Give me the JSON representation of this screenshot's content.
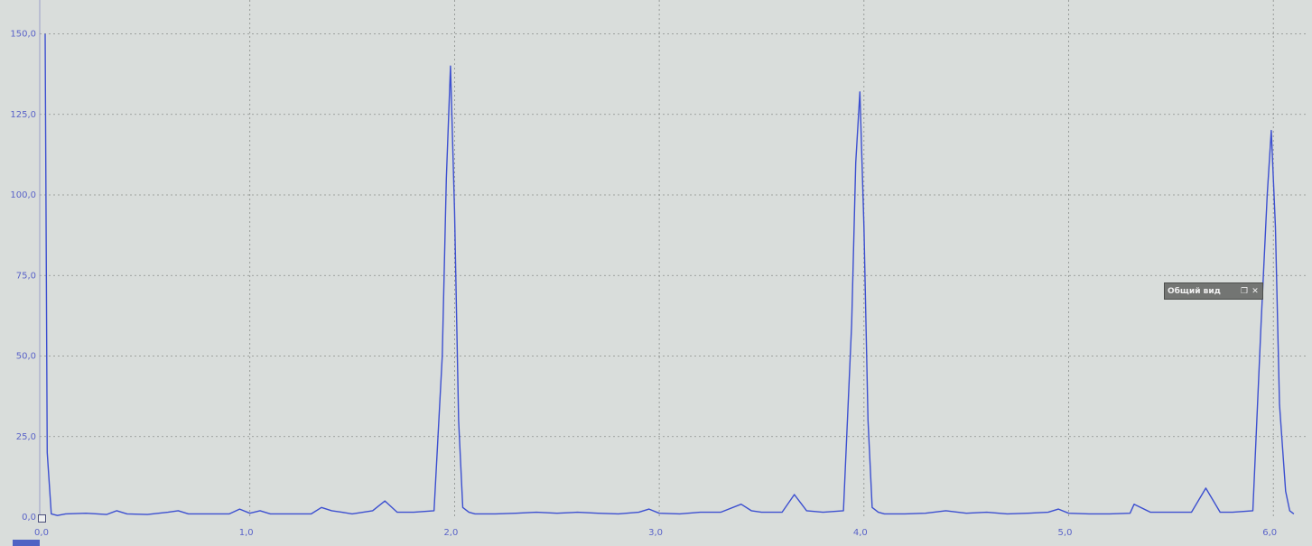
{
  "overview_panel": {
    "title": "Общий вид",
    "restore_icon": "restore-icon",
    "close_icon": "close-icon"
  },
  "colors": {
    "series": "#3c4fd0",
    "axis_text": "#5a63c8",
    "grid": "#8a8e8c",
    "background": "#d9dddb"
  },
  "chart_data": {
    "type": "line",
    "title": "",
    "xlabel": "",
    "ylabel": "",
    "xlim": [
      0,
      6.1
    ],
    "ylim": [
      0,
      160
    ],
    "grid": true,
    "x_ticks": [
      0.0,
      1.0,
      2.0,
      3.0,
      4.0,
      5.0,
      6.0
    ],
    "x_tick_labels": [
      "0,0",
      "1,0",
      "2,0",
      "3,0",
      "4,0",
      "5,0",
      "6,0"
    ],
    "y_ticks": [
      0.0,
      25.0,
      50.0,
      75.0,
      100.0,
      125.0,
      150.0
    ],
    "y_tick_labels": [
      "0,0",
      "25,0",
      "50,0",
      "75,0",
      "100,0",
      "125,0",
      "150,0"
    ],
    "series": [
      {
        "x": [
          0.0,
          0.01,
          0.03,
          0.06,
          0.1,
          0.2,
          0.3,
          0.35,
          0.4,
          0.5,
          0.6,
          0.65,
          0.7,
          0.8,
          0.9,
          0.95,
          1.0,
          1.05,
          1.1,
          1.2,
          1.3,
          1.35,
          1.4,
          1.45,
          1.5,
          1.6,
          1.66,
          1.72,
          1.8,
          1.9,
          1.94,
          1.96,
          1.98,
          2.0,
          2.02,
          2.04,
          2.07,
          2.1,
          2.2,
          2.3,
          2.4,
          2.5,
          2.6,
          2.7,
          2.8,
          2.9,
          2.95,
          3.0,
          3.1,
          3.2,
          3.3,
          3.4,
          3.45,
          3.5,
          3.6,
          3.66,
          3.72,
          3.8,
          3.9,
          3.94,
          3.96,
          3.98,
          4.0,
          4.02,
          4.04,
          4.07,
          4.1,
          4.2,
          4.3,
          4.4,
          4.5,
          4.6,
          4.7,
          4.8,
          4.9,
          4.95,
          5.0,
          5.1,
          5.2,
          5.3,
          5.32,
          5.4,
          5.5,
          5.6,
          5.67,
          5.74,
          5.8,
          5.9,
          5.94,
          5.97,
          5.99,
          6.01,
          6.03,
          6.06,
          6.08,
          6.1
        ],
        "values": [
          150,
          20,
          1,
          0.5,
          1,
          1.2,
          0.8,
          2,
          1,
          0.8,
          1.5,
          2,
          1,
          1,
          1,
          2.5,
          1.2,
          2,
          1,
          1,
          1,
          3,
          2,
          1.5,
          1,
          2,
          5,
          1.5,
          1.5,
          2,
          50,
          105,
          140,
          95,
          30,
          3,
          1.5,
          1,
          1,
          1.2,
          1.5,
          1.2,
          1.5,
          1.2,
          1,
          1.5,
          2.5,
          1.2,
          1,
          1.5,
          1.5,
          4,
          2,
          1.5,
          1.5,
          7,
          2,
          1.5,
          2,
          60,
          110,
          132,
          90,
          30,
          3,
          1.5,
          1,
          1,
          1.2,
          2,
          1.2,
          1.5,
          1,
          1.2,
          1.5,
          2.5,
          1.2,
          1,
          1,
          1.2,
          4,
          1.5,
          1.5,
          1.5,
          9,
          1.5,
          1.5,
          2,
          60,
          100,
          120,
          90,
          35,
          8,
          2,
          1
        ]
      }
    ]
  }
}
